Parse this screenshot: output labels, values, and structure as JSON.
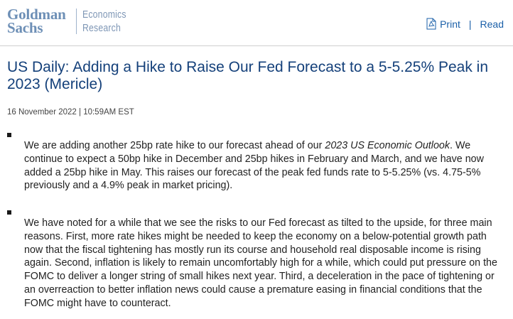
{
  "brand": {
    "name_line1": "Goldman",
    "name_line2": "Sachs",
    "division_line1": "Economics",
    "division_line2": "Research",
    "color": "#6d8fb6"
  },
  "toolbar": {
    "print_icon": "pdf-icon",
    "print_label": "Print",
    "separator": "|",
    "read_label": "Read",
    "link_color": "#1a5fa8"
  },
  "article": {
    "title": "US Daily: Adding a Hike to Raise Our Fed Forecast to a 5-5.25% Peak in 2023 (Mericle)",
    "dateline": "16 November 2022 | 10:59AM EST",
    "title_color": "#14407a",
    "paragraphs": [
      {
        "before_italic": "We are adding another 25bp rate hike to our forecast ahead of our ",
        "italic": "2023 US Economic Outlook",
        "after_italic": ". We continue to expect a 50bp hike in December and 25bp hikes in February and March, and we have now added a 25bp hike in May. This raises our forecast of the peak fed funds rate to 5-5.25% (vs. 4.75-5% previously and a 4.9% peak in market pricing)."
      },
      {
        "text": "We have noted for a while that we see the risks to our Fed forecast as tilted to the upside, for three main reasons. First, more rate hikes might be needed to keep the economy on a below-potential growth path now that the fiscal tightening has mostly run its course and household real disposable income is rising again. Second, inflation is likely to remain uncomfortably high for a while, which could put pressure on the FOMC to deliver a longer string of small hikes next year. Third, a deceleration in the pace of tightening or an overreaction to better inflation news could cause a premature easing in financial conditions that the FOMC might have to counteract."
      }
    ]
  }
}
